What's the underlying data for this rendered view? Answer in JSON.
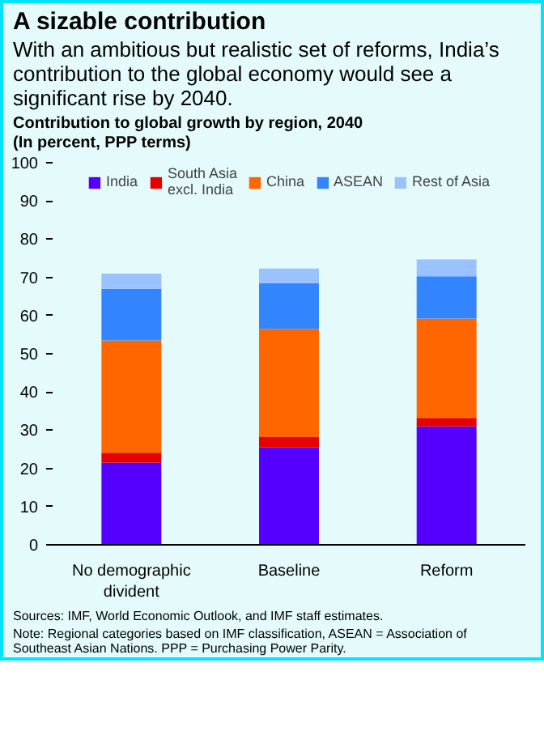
{
  "chart_data": {
    "type": "bar",
    "stacked": true,
    "title": "A sizable contribution",
    "subtitle": "With an ambitious but realistic set of reforms, India’s contribution to the global economy would see a significant rise by 2040.",
    "ylabel": "Contribution to global growth by region, 2040\n(In percent, PPP terms)",
    "categories": [
      "No demographic divident",
      "Baseline",
      "Reform"
    ],
    "series": [
      {
        "name": "India",
        "color": "#5500ff",
        "values": [
          21.5,
          25.5,
          31.0
        ]
      },
      {
        "name": "South Asia\nexcl. India",
        "color": "#e60000",
        "values": [
          2.6,
          2.7,
          2.2
        ]
      },
      {
        "name": "China",
        "color": "#ff6600",
        "values": [
          29.4,
          28.3,
          26.0
        ]
      },
      {
        "name": "ASEAN",
        "color": "#3385ff",
        "values": [
          13.5,
          12.0,
          11.1
        ]
      },
      {
        "name": "Rest of Asia",
        "color": "#99c2ff",
        "values": [
          4.0,
          3.8,
          4.4
        ]
      }
    ],
    "ylim": [
      0,
      100
    ],
    "yticks": [
      0,
      10,
      20,
      30,
      40,
      50,
      60,
      70,
      80,
      90,
      100
    ],
    "grid": false,
    "legend": "top",
    "annotations": [
      "Sources: IMF, World Economic Outlook, and IMF staff estimates.",
      "Note: Regional categories based on IMF classification, ASEAN = Association of Southeast Asian Nations. PPP = Purchasing Power Parity."
    ]
  }
}
